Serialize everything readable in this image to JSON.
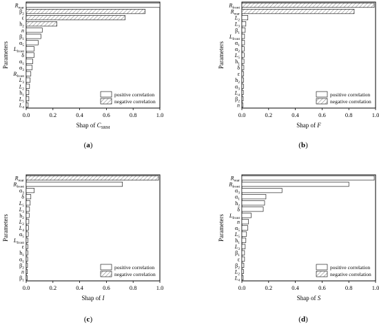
{
  "colors": {
    "positive": "#ffffff",
    "negative_hatch": "#8a8a8a",
    "edge": "#000000"
  },
  "chart_data": [
    {
      "type": "bar",
      "orientation": "horizontal",
      "panel_label": "(a)",
      "ylabel": "Parameters",
      "xlabel_prefix": "Shap of ",
      "xlabel_var": "C",
      "xlabel_sub": "SRM",
      "xlim": [
        0,
        1.0
      ],
      "xticks": [
        "0.0",
        "0.2",
        "0.4",
        "0.6",
        "0.8",
        "1.0"
      ],
      "legend": [
        "positive correlation",
        "negative correlation"
      ],
      "legend_position": "bottom-right",
      "categories": [
        {
          "b": "R",
          "s": "rear",
          "g": false
        },
        {
          "b": "β",
          "s": "2",
          "g": true
        },
        {
          "b": "ε",
          "s": "",
          "g": true
        },
        {
          "b": "h",
          "s": "2",
          "g": true
        },
        {
          "b": "n",
          "s": "",
          "g": false
        },
        {
          "b": "β",
          "s": "1",
          "g": true
        },
        {
          "b": "α",
          "s": "5",
          "g": true
        },
        {
          "b": "L",
          "s": "front",
          "g": false
        },
        {
          "b": "δ",
          "s": "",
          "g": true
        },
        {
          "b": "α",
          "s": "1",
          "g": true
        },
        {
          "b": "α",
          "s": "3",
          "g": true
        },
        {
          "b": "R",
          "s": "front",
          "g": false
        },
        {
          "b": "L",
          "s": "3",
          "g": false
        },
        {
          "b": "L",
          "s": "2",
          "g": false
        },
        {
          "b": "h",
          "s": "1",
          "g": true
        },
        {
          "b": "L",
          "s": "5",
          "g": false
        },
        {
          "b": "L",
          "s": "4",
          "g": false
        }
      ],
      "values": [
        1.0,
        0.89,
        0.74,
        0.23,
        0.12,
        0.11,
        0.09,
        0.06,
        0.06,
        0.05,
        0.045,
        0.035,
        0.03,
        0.025,
        0.02,
        0.02,
        0.015
      ],
      "correlation": [
        "positive",
        "negative",
        "negative",
        "negative",
        "positive",
        "positive",
        "positive",
        "positive",
        "positive",
        "positive",
        "positive",
        "positive",
        "positive",
        "positive",
        "positive",
        "positive",
        "positive"
      ]
    },
    {
      "type": "bar",
      "orientation": "horizontal",
      "panel_label": "(b)",
      "ylabel": "Parameters",
      "xlabel_prefix": "Shap of ",
      "xlabel_var": "F",
      "xlabel_sub": "",
      "xlim": [
        0,
        1.0
      ],
      "xticks": [
        "0.0",
        "0.2",
        "0.4",
        "0.6",
        "0.8",
        "1.0"
      ],
      "legend": [
        "positive correlation",
        "negative correlation"
      ],
      "legend_position": "bottom-right",
      "categories": [
        {
          "b": "R",
          "s": "front",
          "g": false
        },
        {
          "b": "R",
          "s": "rear",
          "g": false
        },
        {
          "b": "L",
          "s": "2",
          "g": false
        },
        {
          "b": "L",
          "s": "3",
          "g": false
        },
        {
          "b": "β",
          "s": "1",
          "g": true
        },
        {
          "b": "L",
          "s": "front",
          "g": false
        },
        {
          "b": "α",
          "s": "1",
          "g": true
        },
        {
          "b": "α",
          "s": "2",
          "g": true
        },
        {
          "b": "L",
          "s": "5",
          "g": false
        },
        {
          "b": "h",
          "s": "1",
          "g": true
        },
        {
          "b": "δ",
          "s": "",
          "g": true
        },
        {
          "b": "ε",
          "s": "",
          "g": true
        },
        {
          "b": "h",
          "s": "2",
          "g": true
        },
        {
          "b": "α",
          "s": "3",
          "g": true
        },
        {
          "b": "L",
          "s": "4",
          "g": false
        },
        {
          "b": "β",
          "s": "2",
          "g": true
        },
        {
          "b": "n",
          "s": "",
          "g": false
        }
      ],
      "values": [
        0.99,
        0.84,
        0.045,
        0.03,
        0.025,
        0.02,
        0.02,
        0.018,
        0.017,
        0.016,
        0.015,
        0.014,
        0.013,
        0.012,
        0.011,
        0.01,
        0.008
      ],
      "correlation": [
        "negative",
        "negative",
        "positive",
        "positive",
        "positive",
        "positive",
        "positive",
        "positive",
        "positive",
        "positive",
        "positive",
        "positive",
        "positive",
        "positive",
        "positive",
        "positive",
        "positive"
      ]
    },
    {
      "type": "bar",
      "orientation": "horizontal",
      "panel_label": "(c)",
      "ylabel": "Parameters",
      "xlabel_prefix": "Shap of ",
      "xlabel_var": "I",
      "xlabel_sub": "",
      "xlim": [
        0,
        1.0
      ],
      "xticks": [
        "0.0",
        "0.2",
        "0.4",
        "0.6",
        "0.8",
        "1.0"
      ],
      "legend": [
        "positive correlation",
        "negative correlation"
      ],
      "legend_position": "bottom-right",
      "categories": [
        {
          "b": "R",
          "s": "rear",
          "g": false
        },
        {
          "b": "R",
          "s": "front",
          "g": false
        },
        {
          "b": "α",
          "s": "3",
          "g": true
        },
        {
          "b": "δ",
          "s": "",
          "g": true
        },
        {
          "b": "L",
          "s": "5",
          "g": false
        },
        {
          "b": "L",
          "s": "3",
          "g": false
        },
        {
          "b": "h",
          "s": "2",
          "g": true
        },
        {
          "b": "L",
          "s": "2",
          "g": false
        },
        {
          "b": "L",
          "s": "4",
          "g": false
        },
        {
          "b": "α",
          "s": "5",
          "g": true
        },
        {
          "b": "L",
          "s": "front",
          "g": false
        },
        {
          "b": "ε",
          "s": "",
          "g": true
        },
        {
          "b": "h",
          "s": "1",
          "g": true
        },
        {
          "b": "α",
          "s": "1",
          "g": true
        },
        {
          "b": "β",
          "s": "2",
          "g": true
        },
        {
          "b": "n",
          "s": "",
          "g": false
        },
        {
          "b": "β",
          "s": "1",
          "g": true
        }
      ],
      "values": [
        0.99,
        0.72,
        0.06,
        0.035,
        0.03,
        0.025,
        0.022,
        0.02,
        0.018,
        0.016,
        0.014,
        0.013,
        0.012,
        0.011,
        0.01,
        0.009,
        0.008
      ],
      "correlation": [
        "negative",
        "positive",
        "positive",
        "positive",
        "positive",
        "positive",
        "positive",
        "positive",
        "positive",
        "positive",
        "positive",
        "positive",
        "positive",
        "positive",
        "positive",
        "positive",
        "positive"
      ]
    },
    {
      "type": "bar",
      "orientation": "horizontal",
      "panel_label": "(d)",
      "ylabel": "Parameters",
      "xlabel_prefix": "Shap of ",
      "xlabel_var": "S",
      "xlabel_sub": "",
      "xlim": [
        0,
        1.0
      ],
      "xticks": [
        "0.0",
        "0.2",
        "0.4",
        "0.6",
        "0.8",
        "1.0"
      ],
      "legend": [
        "positive correlation",
        "negative correlation"
      ],
      "legend_position": "bottom-right",
      "categories": [
        {
          "b": "R",
          "s": "rear",
          "g": false
        },
        {
          "b": "R",
          "s": "front",
          "g": false
        },
        {
          "b": "α",
          "s": "3",
          "g": true
        },
        {
          "b": "α",
          "s": "1",
          "g": true
        },
        {
          "b": "h",
          "s": "2",
          "g": true
        },
        {
          "b": "δ",
          "s": "",
          "g": true
        },
        {
          "b": "L",
          "s": "front",
          "g": false
        },
        {
          "b": "n",
          "s": "",
          "g": false
        },
        {
          "b": "α",
          "s": "5",
          "g": true
        },
        {
          "b": "L",
          "s": "5",
          "g": false
        },
        {
          "b": "h",
          "s": "1",
          "g": true
        },
        {
          "b": "L",
          "s": "3",
          "g": false
        },
        {
          "b": "β",
          "s": "1",
          "g": true
        },
        {
          "b": "ε",
          "s": "",
          "g": true
        },
        {
          "b": "β",
          "s": "2",
          "g": true
        },
        {
          "b": "L",
          "s": "2",
          "g": false
        },
        {
          "b": "L",
          "s": "4",
          "g": false
        }
      ],
      "values": [
        0.99,
        0.8,
        0.3,
        0.18,
        0.17,
        0.16,
        0.07,
        0.05,
        0.045,
        0.035,
        0.03,
        0.025,
        0.02,
        0.02,
        0.015,
        0.012,
        0.01
      ],
      "correlation": [
        "positive",
        "positive",
        "positive",
        "positive",
        "positive",
        "positive",
        "positive",
        "positive",
        "positive",
        "positive",
        "positive",
        "positive",
        "positive",
        "positive",
        "positive",
        "positive",
        "positive"
      ]
    }
  ]
}
